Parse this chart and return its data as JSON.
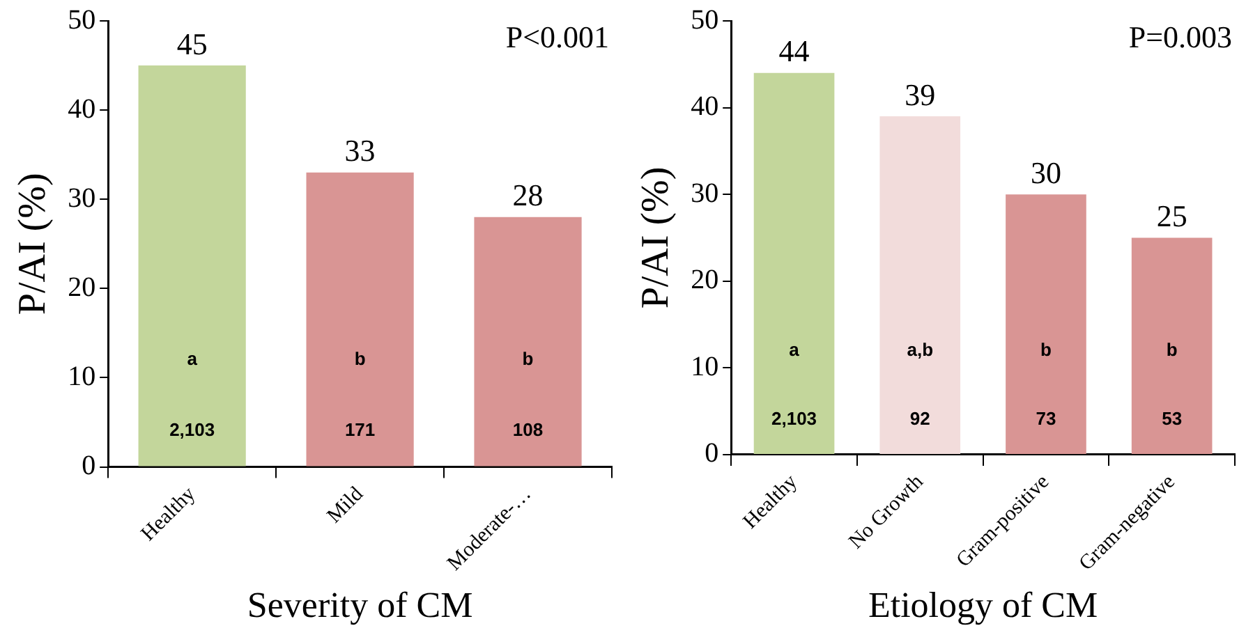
{
  "chart_data": [
    {
      "type": "bar",
      "xlabel": "Severity of CM",
      "ylabel": "P/AI (%)",
      "categories": [
        "Healthy",
        "Mild",
        "Moderate-…"
      ],
      "values": [
        45,
        33,
        28
      ],
      "colors": [
        "#c3d69b",
        "#d99594",
        "#d99594"
      ],
      "ylim": [
        0,
        50
      ],
      "yticks": [
        0,
        10,
        20,
        30,
        40,
        50
      ],
      "grid": false,
      "legend": false,
      "data_labels": true,
      "annotations": [
        "P<0.001",
        "a",
        "b",
        "b",
        "2,103",
        "171",
        "108"
      ]
    },
    {
      "type": "bar",
      "xlabel": "Etiology of CM",
      "ylabel": "P/AI (%)",
      "categories": [
        "Healthy",
        "No Growth",
        "Gram-positive",
        "Gram-negative"
      ],
      "values": [
        44,
        39,
        30,
        25
      ],
      "colors": [
        "#c3d69b",
        "#f2dcdb",
        "#d99594",
        "#d99594"
      ],
      "ylim": [
        0,
        50
      ],
      "yticks": [
        0,
        10,
        20,
        30,
        40,
        50
      ],
      "grid": false,
      "legend": false,
      "data_labels": true,
      "annotations": [
        "P=0.003",
        "a",
        "a,b",
        "b",
        "b",
        "2,103",
        "92",
        "73",
        "53"
      ]
    }
  ]
}
